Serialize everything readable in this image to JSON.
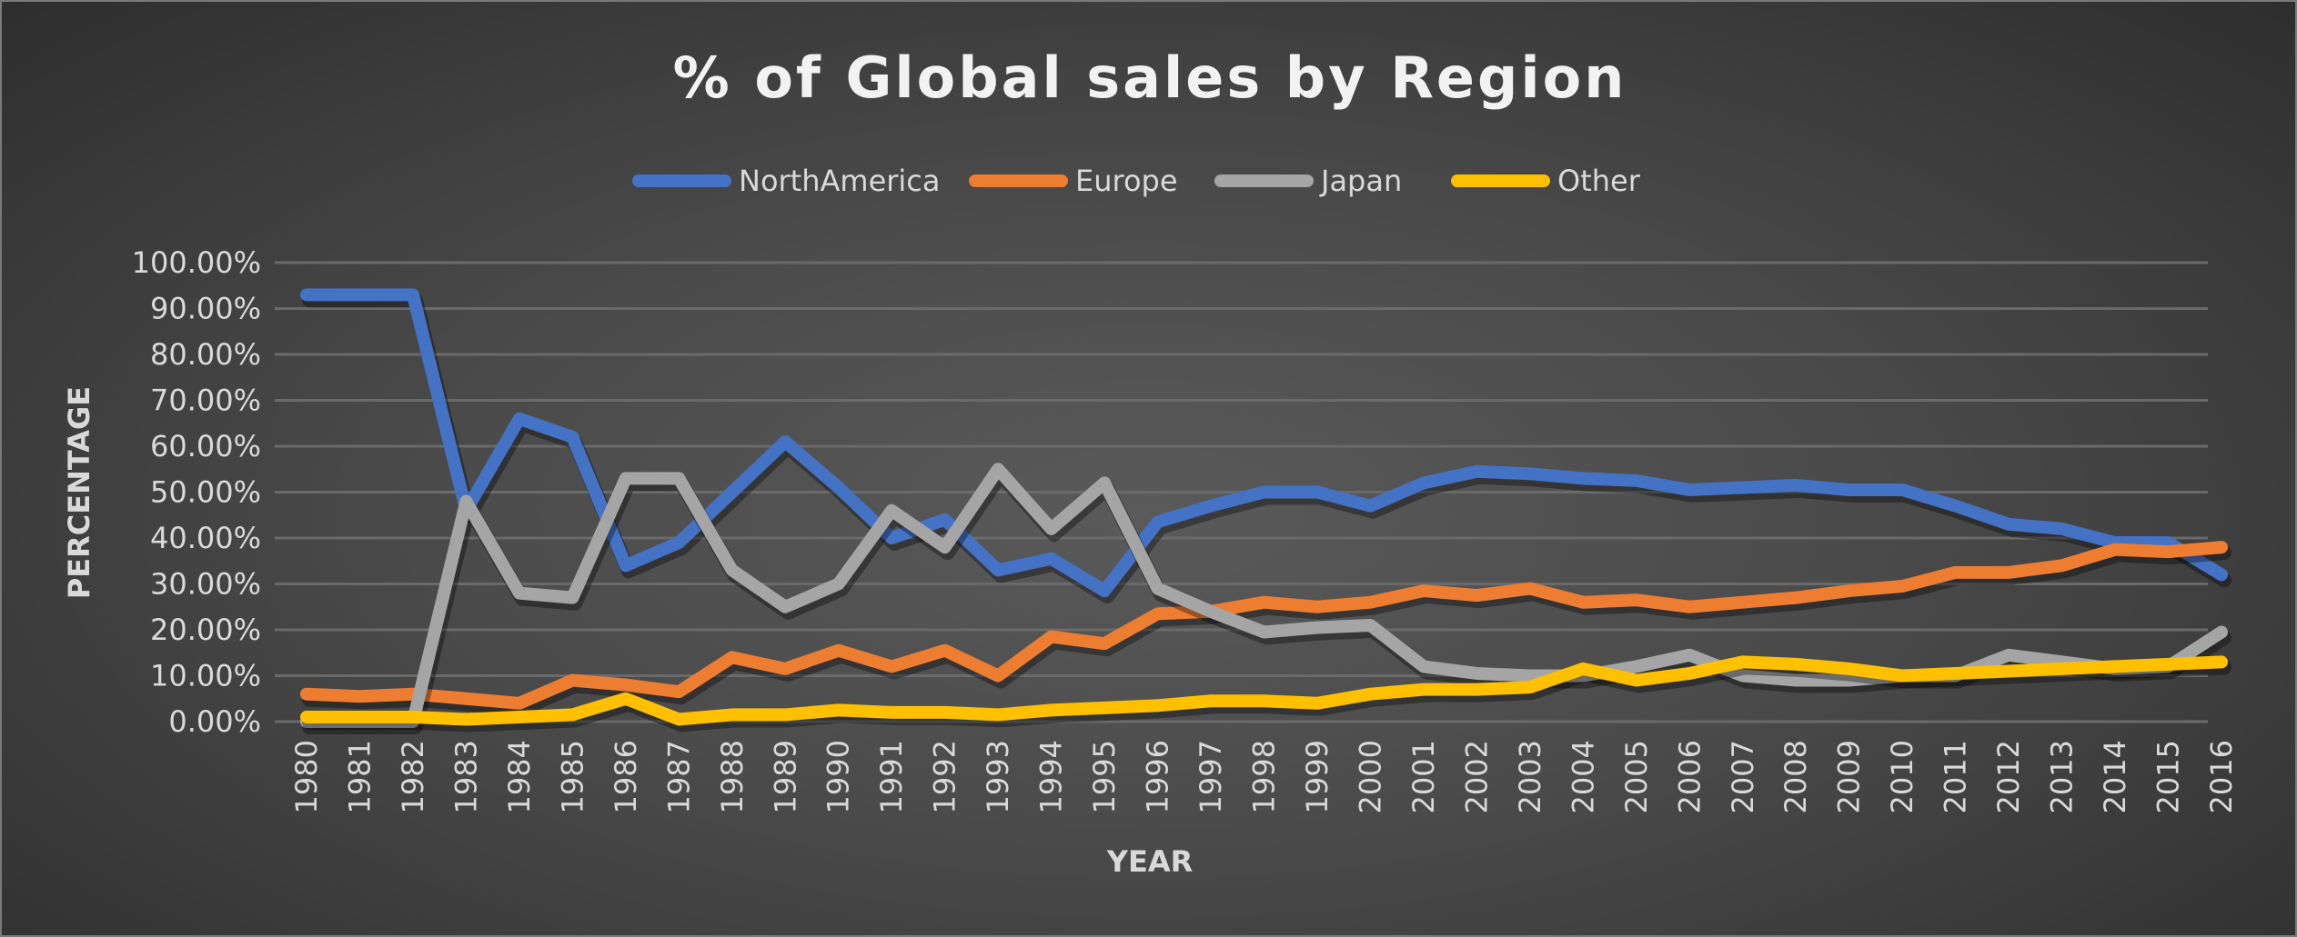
{
  "chart_data": {
    "type": "line",
    "title": "% of Global sales by Region",
    "xlabel": "YEAR",
    "ylabel": "PERCENTAGE",
    "ylim": [
      0,
      100
    ],
    "yticks": [
      "0.00%",
      "10.00%",
      "20.00%",
      "30.00%",
      "40.00%",
      "50.00%",
      "60.00%",
      "70.00%",
      "80.00%",
      "90.00%",
      "100.00%"
    ],
    "grid": true,
    "legend_position": "top",
    "x": [
      "1980",
      "1981",
      "1982",
      "1983",
      "1984",
      "1985",
      "1986",
      "1987",
      "1988",
      "1989",
      "1990",
      "1991",
      "1992",
      "1993",
      "1994",
      "1995",
      "1996",
      "1997",
      "1998",
      "1999",
      "2000",
      "2001",
      "2002",
      "2003",
      "2004",
      "2005",
      "2006",
      "2007",
      "2008",
      "2009",
      "2010",
      "2011",
      "2012",
      "2013",
      "2014",
      "2015",
      "2016"
    ],
    "series": [
      {
        "name": "NorthAmerica",
        "color": "#4472c4",
        "values": [
          93,
          93,
          93,
          46,
          66,
          62,
          34,
          39,
          50,
          61,
          51,
          40,
          44,
          33,
          35.5,
          28.5,
          43.5,
          47,
          50,
          50,
          47,
          52,
          54.5,
          54,
          53,
          52.5,
          50.5,
          51,
          51.5,
          50.5,
          50.5,
          47,
          43,
          42,
          39,
          39,
          32
        ]
      },
      {
        "name": "Europe",
        "color": "#ed7d31",
        "values": [
          6,
          5.5,
          6,
          5,
          4,
          9,
          8,
          6.5,
          14,
          11.5,
          15.5,
          12,
          15.5,
          10,
          18.5,
          17,
          23.5,
          24,
          26,
          25,
          26,
          28.5,
          27.5,
          29,
          26,
          26.5,
          25,
          26,
          27,
          28.5,
          29.5,
          32.5,
          32.5,
          34,
          37.5,
          37,
          38
        ]
      },
      {
        "name": "Japan",
        "color": "#a5a5a5",
        "values": [
          0,
          0,
          0,
          48,
          28,
          27,
          53,
          53,
          33,
          25,
          30,
          46,
          38,
          55,
          42,
          52,
          29,
          24,
          19.5,
          20.5,
          21,
          12,
          10.5,
          10,
          10,
          12,
          14.5,
          10,
          9,
          9,
          10,
          10,
          14.5,
          13,
          11.5,
          12,
          19.5
        ]
      },
      {
        "name": "Other",
        "color": "#ffc000",
        "values": [
          1,
          1,
          1,
          0.5,
          1,
          1.5,
          5,
          0.5,
          1.5,
          1.5,
          2.5,
          2,
          2,
          1.5,
          2.5,
          3,
          3.5,
          4.5,
          4.5,
          4,
          6,
          7,
          7,
          7.5,
          11.5,
          9,
          10.5,
          13,
          12.5,
          11.5,
          10,
          10.5,
          11,
          11.5,
          12,
          12.5,
          13
        ]
      }
    ]
  }
}
